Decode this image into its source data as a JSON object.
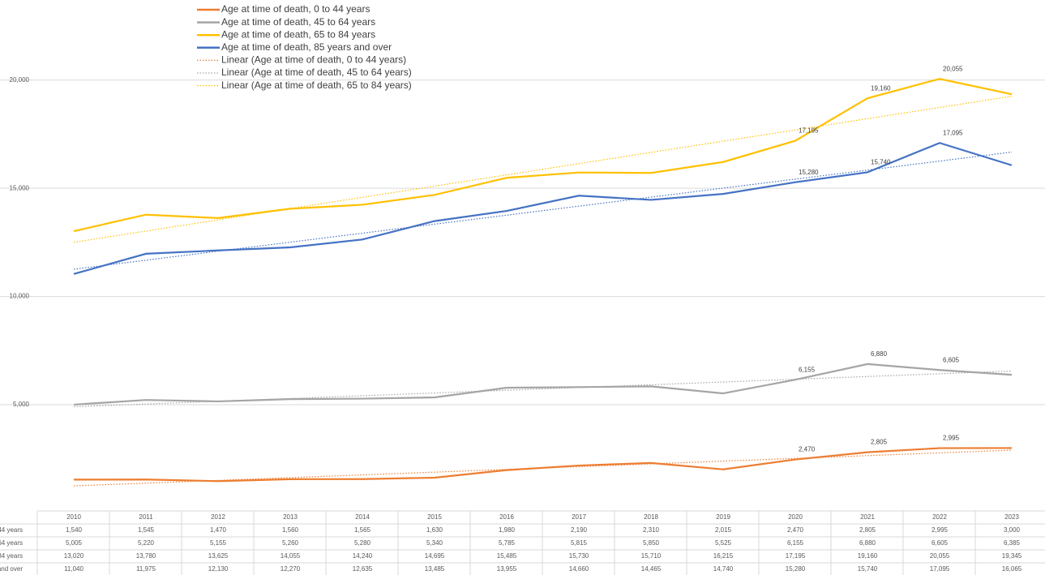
{
  "chart_data": {
    "type": "line",
    "categories": [
      "2010",
      "2011",
      "2012",
      "2013",
      "2014",
      "2015",
      "2016",
      "2017",
      "2018",
      "2019",
      "2020",
      "2021",
      "2022",
      "2023"
    ],
    "ylim": [
      0,
      22500
    ],
    "yticks": [
      {
        "value": 5000,
        "label": "5,000"
      },
      {
        "value": 10000,
        "label": "10,000"
      },
      {
        "value": 15000,
        "label": "15,000"
      },
      {
        "value": 20000,
        "label": "20,000"
      }
    ],
    "grid": true,
    "series": [
      {
        "name": "Age at time of death, 0 to 44 years",
        "color": "#ed7d31",
        "values": [
          1540,
          1545,
          1470,
          1560,
          1565,
          1630,
          1980,
          2190,
          2310,
          2015,
          2470,
          2805,
          2995,
          3000
        ],
        "value_labels": [
          "1,540",
          "1,545",
          "1,470",
          "1,560",
          "1,565",
          "1,630",
          "1,980",
          "2,190",
          "2,310",
          "2,015",
          "2,470",
          "2,805",
          "2,995",
          "3,000"
        ]
      },
      {
        "name": "Age at time of death, 45 to 64 years",
        "color": "#a5a5a5",
        "values": [
          5005,
          5220,
          5155,
          5260,
          5280,
          5340,
          5785,
          5815,
          5850,
          5525,
          6155,
          6880,
          6605,
          6385
        ],
        "value_labels": [
          "5,005",
          "5,220",
          "5,155",
          "5,260",
          "5,280",
          "5,340",
          "5,785",
          "5,815",
          "5,850",
          "5,525",
          "6,155",
          "6,880",
          "6,605",
          "6,385"
        ]
      },
      {
        "name": "Age at time of death, 65 to 84 years",
        "color": "#ffc000",
        "values": [
          13020,
          13780,
          13625,
          14055,
          14240,
          14695,
          15485,
          15730,
          15710,
          16215,
          17195,
          19160,
          20055,
          19345
        ],
        "value_labels": [
          "13,020",
          "13,780",
          "13,625",
          "14,055",
          "14,240",
          "14,695",
          "15,485",
          "15,730",
          "15,710",
          "16,215",
          "17,195",
          "19,160",
          "20,055",
          "19,345"
        ]
      },
      {
        "name": "Age at time of death, 85 years and over",
        "color": "#4472c4",
        "values": [
          11040,
          11975,
          12130,
          12270,
          12635,
          13485,
          13955,
          14660,
          14465,
          14740,
          15280,
          15740,
          17095,
          16065
        ],
        "value_labels": [
          "11,040",
          "11,975",
          "12,130",
          "12,270",
          "12,635",
          "13,485",
          "13,955",
          "14,660",
          "14,465",
          "14,740",
          "15,280",
          "15,740",
          "17,095",
          "16,065"
        ]
      }
    ],
    "annotated_points": [
      10,
      11,
      12
    ],
    "trendlines": [
      {
        "name": "Linear (Age at time of death, 0 to 44 years)",
        "series": 0,
        "color": "#ed7d31"
      },
      {
        "name": "Linear (Age at time of death, 45 to 64 years)",
        "series": 1,
        "color": "#a5a5a5"
      },
      {
        "name": "Linear (Age at time of death, 65 to 84 years)",
        "series": 2,
        "color": "#ffc000"
      },
      {
        "series": 3,
        "color": "#4472c4"
      }
    ]
  }
}
